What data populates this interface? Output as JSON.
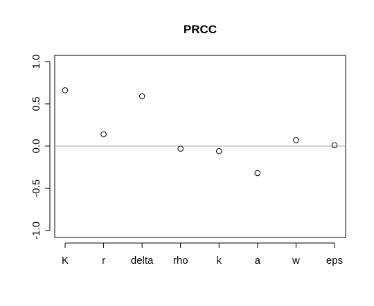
{
  "chart_data": {
    "type": "scatter",
    "title": "PRCC",
    "xlabel": "",
    "ylabel": "",
    "categories": [
      "K",
      "r",
      "delta",
      "rho",
      "k",
      "a",
      "w",
      "eps"
    ],
    "values": [
      0.66,
      0.14,
      0.59,
      -0.03,
      -0.06,
      -0.32,
      0.07,
      0.01
    ],
    "ylim": [
      -1.0,
      1.0
    ],
    "yticks": [
      1.0,
      0.5,
      0.0,
      -0.5,
      -1.0
    ],
    "ytick_labels": [
      "1.0",
      "0.5",
      "0.0",
      "-0.5",
      "-1.0"
    ],
    "reference_line": 0,
    "grid": false,
    "colors": {
      "points": "#000000",
      "reference_line": "#aaaaaa",
      "axes": "#000000"
    }
  }
}
